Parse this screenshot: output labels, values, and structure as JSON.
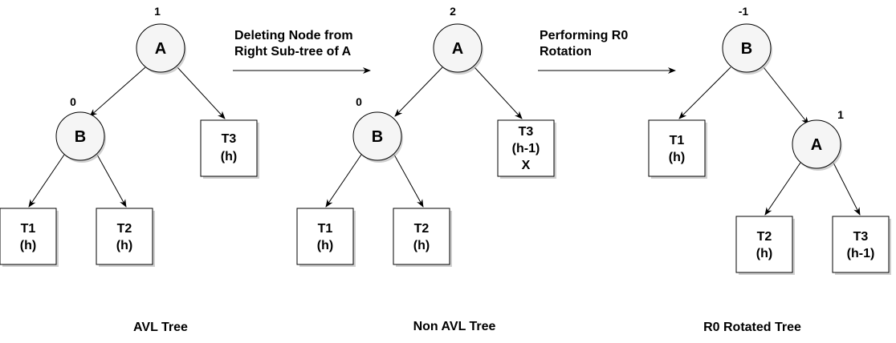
{
  "trees": [
    {
      "caption": "AVL Tree",
      "nodes": [
        {
          "id": "A",
          "label": "A",
          "balance": "1"
        },
        {
          "id": "B",
          "label": "B",
          "balance": "0"
        }
      ],
      "subtrees": [
        {
          "lines": [
            "T3",
            "(h)"
          ]
        },
        {
          "lines": [
            "T1",
            "(h)"
          ]
        },
        {
          "lines": [
            "T2",
            "(h)"
          ]
        }
      ]
    },
    {
      "caption": "Non AVL Tree",
      "nodes": [
        {
          "id": "A",
          "label": "A",
          "balance": "2"
        },
        {
          "id": "B",
          "label": "B",
          "balance": "0"
        }
      ],
      "subtrees": [
        {
          "lines": [
            "T3",
            "(h-1)",
            "X"
          ]
        },
        {
          "lines": [
            "T1",
            "(h)"
          ]
        },
        {
          "lines": [
            "T2",
            "(h)"
          ]
        }
      ]
    },
    {
      "caption": "R0 Rotated Tree",
      "nodes": [
        {
          "id": "B",
          "label": "B",
          "balance": "-1"
        },
        {
          "id": "A",
          "label": "A",
          "balance": "1"
        }
      ],
      "subtrees": [
        {
          "lines": [
            "T1",
            "(h)"
          ]
        },
        {
          "lines": [
            "T2",
            "(h)"
          ]
        },
        {
          "lines": [
            "T3",
            "(h-1)"
          ]
        }
      ]
    }
  ],
  "transitions": [
    {
      "lines": [
        "Deleting Node from",
        "Right Sub-tree of A"
      ]
    },
    {
      "lines": [
        "Performing R0",
        "Rotation"
      ]
    }
  ],
  "colors": {
    "node_fill": "#f5f5f5",
    "stroke": "#000000",
    "shadow": "#b0b0b0"
  }
}
